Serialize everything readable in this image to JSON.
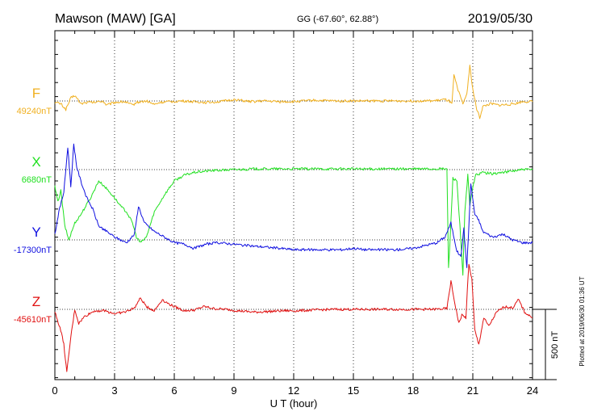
{
  "header": {
    "station": "Mawson (MAW)  [GA]",
    "coords": "GG (-67.60°,  62.88°)",
    "date": "2019/05/30"
  },
  "footer": {
    "plotted": "Plotted at 2019/06/30 01:36 UT"
  },
  "chart_data": {
    "type": "line",
    "xlabel": "U T (hour)",
    "xlim": [
      0,
      24
    ],
    "x_ticks": [
      "0",
      "3",
      "6",
      "9",
      "12",
      "15",
      "18",
      "21",
      "24"
    ],
    "grid": "dotted vertical lines every 3 hours",
    "scale_bar": {
      "label": "500 nT",
      "value": 500
    },
    "series": [
      {
        "name": "F",
        "baseline_label": "49240nT",
        "color": "#f0b020",
        "points": [
          [
            0,
            -10
          ],
          [
            0.3,
            -20
          ],
          [
            0.55,
            -60
          ],
          [
            0.8,
            20
          ],
          [
            1.0,
            40
          ],
          [
            1.3,
            -20
          ],
          [
            1.6,
            -10
          ],
          [
            2.0,
            -10
          ],
          [
            2.4,
            0
          ],
          [
            2.6,
            -30
          ],
          [
            3.0,
            -10
          ],
          [
            3.5,
            -5
          ],
          [
            3.9,
            -30
          ],
          [
            4.1,
            -10
          ],
          [
            4.6,
            0
          ],
          [
            5.0,
            -25
          ],
          [
            5.3,
            -10
          ],
          [
            5.8,
            -5
          ],
          [
            6.4,
            0
          ],
          [
            7.0,
            -5
          ],
          [
            7.6,
            -10
          ],
          [
            8.3,
            -5
          ],
          [
            9.0,
            10
          ],
          [
            9.8,
            -5
          ],
          [
            10.5,
            0
          ],
          [
            11.3,
            -5
          ],
          [
            12.0,
            -5
          ],
          [
            13.0,
            5
          ],
          [
            14.0,
            0
          ],
          [
            15.0,
            0
          ],
          [
            16.0,
            0
          ],
          [
            17.0,
            0
          ],
          [
            18.0,
            0
          ],
          [
            19.0,
            0
          ],
          [
            19.6,
            10
          ],
          [
            19.8,
            0
          ],
          [
            19.95,
            -25
          ],
          [
            20.05,
            180
          ],
          [
            20.3,
            60
          ],
          [
            20.5,
            -20
          ],
          [
            20.7,
            50
          ],
          [
            20.85,
            250
          ],
          [
            21.0,
            80
          ],
          [
            21.2,
            -60
          ],
          [
            21.35,
            -120
          ],
          [
            21.5,
            -40
          ],
          [
            21.9,
            -20
          ],
          [
            22.3,
            -30
          ],
          [
            22.8,
            -25
          ],
          [
            23.1,
            -20
          ],
          [
            23.5,
            -5
          ],
          [
            24.0,
            -5
          ]
        ]
      },
      {
        "name": "X",
        "baseline_label": "6680nT",
        "color": "#20e020",
        "points": [
          [
            0,
            -120
          ],
          [
            0.15,
            -230
          ],
          [
            0.3,
            -150
          ],
          [
            0.5,
            -400
          ],
          [
            0.7,
            -500
          ],
          [
            1.0,
            -380
          ],
          [
            1.3,
            -320
          ],
          [
            1.8,
            -200
          ],
          [
            2.2,
            -80
          ],
          [
            2.5,
            -120
          ],
          [
            3.0,
            -200
          ],
          [
            3.3,
            -260
          ],
          [
            3.6,
            -300
          ],
          [
            3.9,
            -380
          ],
          [
            4.1,
            -480
          ],
          [
            4.3,
            -520
          ],
          [
            4.6,
            -480
          ],
          [
            5.0,
            -300
          ],
          [
            5.5,
            -180
          ],
          [
            6.0,
            -80
          ],
          [
            6.5,
            -40
          ],
          [
            7.0,
            -20
          ],
          [
            7.6,
            -10
          ],
          [
            8.2,
            -5
          ],
          [
            9.0,
            0
          ],
          [
            10.0,
            5
          ],
          [
            11.0,
            5
          ],
          [
            12.0,
            5
          ],
          [
            13.0,
            5
          ],
          [
            14.0,
            5
          ],
          [
            15.0,
            5
          ],
          [
            16.0,
            5
          ],
          [
            17.0,
            5
          ],
          [
            18.0,
            5
          ],
          [
            19.0,
            5
          ],
          [
            19.7,
            5
          ],
          [
            19.78,
            -700
          ],
          [
            19.85,
            -520
          ],
          [
            20.0,
            -60
          ],
          [
            20.2,
            -80
          ],
          [
            20.35,
            -400
          ],
          [
            20.5,
            -750
          ],
          [
            20.6,
            -300
          ],
          [
            20.75,
            -40
          ],
          [
            20.85,
            -260
          ],
          [
            21.0,
            -120
          ],
          [
            21.15,
            -40
          ],
          [
            21.5,
            -20
          ],
          [
            22.0,
            -30
          ],
          [
            22.5,
            -20
          ],
          [
            23.0,
            -10
          ],
          [
            23.5,
            0
          ],
          [
            24.0,
            0
          ]
        ]
      },
      {
        "name": "Y",
        "baseline_label": "-17300nT",
        "color": "#1010e0",
        "points": [
          [
            0,
            40
          ],
          [
            0.2,
            200
          ],
          [
            0.45,
            340
          ],
          [
            0.65,
            660
          ],
          [
            0.8,
            380
          ],
          [
            0.95,
            680
          ],
          [
            1.1,
            520
          ],
          [
            1.3,
            420
          ],
          [
            1.6,
            300
          ],
          [
            1.9,
            220
          ],
          [
            2.2,
            100
          ],
          [
            2.6,
            60
          ],
          [
            3.0,
            20
          ],
          [
            3.3,
            0
          ],
          [
            3.6,
            -20
          ],
          [
            4.0,
            40
          ],
          [
            4.2,
            240
          ],
          [
            4.5,
            120
          ],
          [
            5.0,
            60
          ],
          [
            5.5,
            20
          ],
          [
            6.0,
            -20
          ],
          [
            6.5,
            -30
          ],
          [
            7.0,
            -60
          ],
          [
            7.6,
            -30
          ],
          [
            8.2,
            -20
          ],
          [
            9.0,
            -30
          ],
          [
            9.6,
            -40
          ],
          [
            10.5,
            -50
          ],
          [
            11.3,
            -60
          ],
          [
            12.0,
            -70
          ],
          [
            12.8,
            -70
          ],
          [
            13.6,
            -70
          ],
          [
            14.4,
            -70
          ],
          [
            15.0,
            -60
          ],
          [
            15.6,
            -70
          ],
          [
            16.4,
            -70
          ],
          [
            17.2,
            -70
          ],
          [
            18.0,
            -60
          ],
          [
            18.6,
            -40
          ],
          [
            19.2,
            -20
          ],
          [
            19.6,
            20
          ],
          [
            19.9,
            120
          ],
          [
            20.2,
            -80
          ],
          [
            20.4,
            -120
          ],
          [
            20.55,
            80
          ],
          [
            20.7,
            -200
          ],
          [
            20.9,
            400
          ],
          [
            21.1,
            180
          ],
          [
            21.3,
            140
          ],
          [
            21.5,
            60
          ],
          [
            22.0,
            20
          ],
          [
            22.5,
            40
          ],
          [
            23.0,
            0
          ],
          [
            23.5,
            -20
          ],
          [
            24.0,
            -20
          ]
        ]
      },
      {
        "name": "Z",
        "baseline_label": "-45610nT",
        "color": "#e01010",
        "points": [
          [
            0,
            -20
          ],
          [
            0.3,
            -150
          ],
          [
            0.45,
            -250
          ],
          [
            0.6,
            -450
          ],
          [
            0.8,
            -200
          ],
          [
            1.0,
            0
          ],
          [
            1.2,
            -100
          ],
          [
            1.5,
            -50
          ],
          [
            2.0,
            -10
          ],
          [
            2.5,
            -10
          ],
          [
            3.0,
            -30
          ],
          [
            3.5,
            -20
          ],
          [
            4.0,
            10
          ],
          [
            4.3,
            80
          ],
          [
            4.6,
            20
          ],
          [
            5.0,
            -10
          ],
          [
            5.4,
            70
          ],
          [
            5.7,
            40
          ],
          [
            6.0,
            20
          ],
          [
            6.5,
            -10
          ],
          [
            7.0,
            -5
          ],
          [
            7.5,
            20
          ],
          [
            8.0,
            5
          ],
          [
            8.6,
            0
          ],
          [
            9.2,
            -10
          ],
          [
            10.0,
            -20
          ],
          [
            10.8,
            -15
          ],
          [
            11.5,
            -10
          ],
          [
            12.2,
            -10
          ],
          [
            13.0,
            -5
          ],
          [
            14.0,
            0
          ],
          [
            15.0,
            0
          ],
          [
            16.0,
            0
          ],
          [
            17.0,
            0
          ],
          [
            18.0,
            0
          ],
          [
            19.0,
            0
          ],
          [
            19.7,
            5
          ],
          [
            19.9,
            200
          ],
          [
            20.1,
            40
          ],
          [
            20.3,
            -100
          ],
          [
            20.45,
            -40
          ],
          [
            20.65,
            -60
          ],
          [
            20.8,
            320
          ],
          [
            20.95,
            220
          ],
          [
            21.1,
            -150
          ],
          [
            21.3,
            -250
          ],
          [
            21.55,
            -60
          ],
          [
            21.8,
            -120
          ],
          [
            22.2,
            -20
          ],
          [
            22.6,
            20
          ],
          [
            23.0,
            10
          ],
          [
            23.3,
            70
          ],
          [
            23.6,
            -20
          ],
          [
            24.0,
            -60
          ]
        ]
      }
    ]
  }
}
